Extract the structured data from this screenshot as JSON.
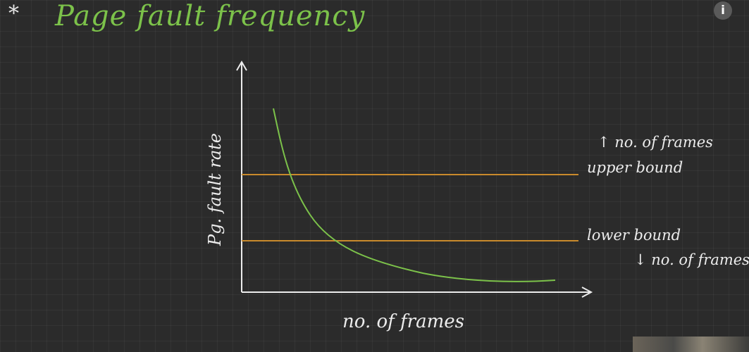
{
  "title": {
    "star": "*",
    "text": "Page fault frequency"
  },
  "diagram": {
    "y_axis_label": "Pg. fault rate",
    "x_axis_label": "no. of frames",
    "upper_bound_label": "upper bound",
    "lower_bound_label": "lower bound",
    "above_upper_note": "↑ no. of frames",
    "below_lower_note": "↓ no. of frames",
    "colors": {
      "axes": "#ececec",
      "bound_lines": "#c98a2c",
      "curve": "#7cc24a",
      "title": "#7cc24a"
    }
  },
  "controls": {
    "info_icon": "i"
  }
}
